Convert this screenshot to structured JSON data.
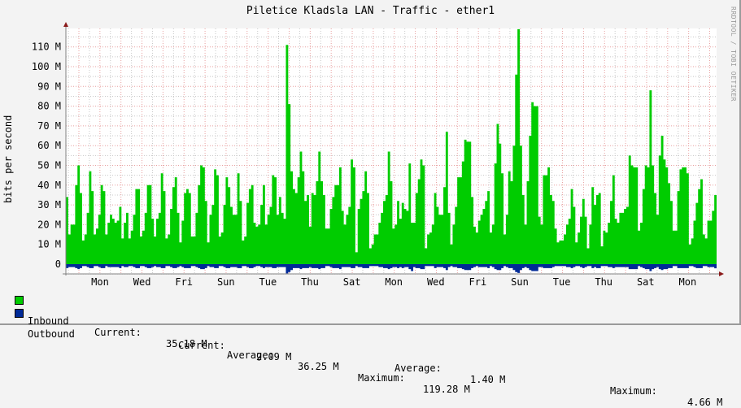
{
  "title": "Piletice Kladsla LAN - Traffic - ether1",
  "credit": "RRDTOOL / TOBI OETIKER",
  "colors": {
    "inbound": "#00cc00",
    "outbound": "#002a97",
    "grid_major": "#e8a0a0",
    "grid_minor": "#c8c8c8",
    "axis": "#808080",
    "arrow": "#8b1a1a"
  },
  "legend": {
    "inbound": {
      "label": "Inbound",
      "current_label": "Current:",
      "current": "35.18 M",
      "average_label": "Average:",
      "average": "36.25 M",
      "maximum_label": "Maximum:",
      "maximum": "119.28 M"
    },
    "outbound": {
      "label": "Outbound",
      "current_label": "Current:",
      "current": "2.09 M",
      "average_label": "Average:",
      "average": "1.40 M",
      "maximum_label": "Maximum:",
      "maximum": "4.66 M"
    }
  },
  "chart_data": {
    "type": "area",
    "title": "Piletice Kladsla LAN - Traffic - ether1",
    "xlabel": "",
    "ylabel": "bits per second",
    "ylim": [
      0,
      120
    ],
    "y_unit": "M",
    "y_ticks": [
      "0",
      "10 M",
      "20 M",
      "30 M",
      "40 M",
      "50 M",
      "60 M",
      "70 M",
      "80 M",
      "90 M",
      "100 M",
      "110 M"
    ],
    "x_ticks": [
      "Mon",
      "Wed",
      "Fri",
      "Sun",
      "Tue",
      "Thu",
      "Sat",
      "Mon",
      "Wed",
      "Fri",
      "Sun",
      "Tue",
      "Thu",
      "Sat",
      "Mon"
    ],
    "grid": true,
    "legend_position": "bottom",
    "series": [
      {
        "name": "Inbound",
        "color": "#00cc00",
        "values": [
          34,
          15,
          20,
          20,
          40,
          50,
          36,
          12,
          15,
          26,
          47,
          37,
          15,
          18,
          25,
          40,
          37,
          15,
          21,
          25,
          23,
          21,
          22,
          29,
          13,
          21,
          26,
          13,
          17,
          25,
          38,
          38,
          14,
          17,
          26,
          40,
          40,
          23,
          14,
          23,
          26,
          46,
          37,
          13,
          15,
          28,
          39,
          44,
          26,
          11,
          22,
          36,
          38,
          36,
          14,
          14,
          26,
          40,
          50,
          49,
          32,
          11,
          25,
          30,
          48,
          45,
          14,
          16,
          30,
          44,
          39,
          29,
          25,
          25,
          46,
          32,
          12,
          14,
          31,
          38,
          40,
          21,
          19,
          20,
          30,
          40,
          20,
          25,
          29,
          45,
          44,
          25,
          34,
          26,
          23,
          111,
          81,
          47,
          38,
          36,
          44,
          57,
          47,
          32,
          35,
          19,
          36,
          35,
          42,
          57,
          42,
          35,
          18,
          18,
          28,
          34,
          40,
          40,
          49,
          27,
          20,
          25,
          29,
          53,
          49,
          6,
          28,
          33,
          37,
          47,
          36,
          8,
          10,
          15,
          15,
          21,
          26,
          32,
          35,
          57,
          42,
          18,
          20,
          32,
          23,
          31,
          28,
          27,
          51,
          21,
          21,
          36,
          43,
          53,
          50,
          8,
          15,
          16,
          20,
          36,
          29,
          25,
          25,
          39,
          67,
          26,
          10,
          20,
          29,
          44,
          44,
          52,
          63,
          62,
          62,
          34,
          19,
          16,
          22,
          25,
          28,
          32,
          37,
          16,
          20,
          51,
          71,
          61,
          46,
          15,
          25,
          47,
          42,
          60,
          96,
          119,
          60,
          35,
          20,
          42,
          65,
          82,
          80,
          80,
          24,
          20,
          45,
          45,
          49,
          35,
          32,
          18,
          11,
          12,
          12,
          15,
          20,
          23,
          38,
          29,
          11,
          16,
          24,
          33,
          24,
          8,
          20,
          39,
          30,
          35,
          36,
          9,
          17,
          16,
          21,
          32,
          45,
          23,
          21,
          26,
          26,
          28,
          29,
          55,
          50,
          49,
          49,
          17,
          21,
          38,
          50,
          49,
          88,
          50,
          36,
          25,
          55,
          65,
          53,
          49,
          41,
          32,
          17,
          17,
          37,
          48,
          49,
          49,
          46,
          10,
          13,
          22,
          31,
          38,
          43,
          15,
          13,
          22,
          22,
          27,
          35
        ]
      },
      {
        "name": "Outbound",
        "color": "#002a97",
        "values": [
          -2,
          -1.5,
          -1.5,
          -1.5,
          -2,
          -2.5,
          -2,
          -1,
          -1,
          -1.5,
          -2,
          -2,
          -1,
          -1,
          -1.5,
          -2,
          -2,
          -1,
          -1.5,
          -1.5,
          -1.5,
          -1.5,
          -1.5,
          -2,
          -1,
          -1.5,
          -1.5,
          -1,
          -1,
          -1.5,
          -2,
          -2,
          -1,
          -1,
          -1.5,
          -2,
          -2,
          -1.5,
          -1,
          -1.5,
          -1.5,
          -2,
          -2,
          -1,
          -1,
          -1.5,
          -2,
          -2,
          -1.5,
          -1,
          -1.5,
          -2,
          -2,
          -2,
          -1,
          -1,
          -1.5,
          -2,
          -2.5,
          -2.5,
          -2,
          -1,
          -1.5,
          -1.5,
          -2,
          -2,
          -1,
          -1,
          -1.5,
          -2,
          -2,
          -1.5,
          -1.5,
          -1.5,
          -2,
          -2,
          -1,
          -1,
          -1.5,
          -2,
          -2,
          -1.5,
          -1,
          -1,
          -1.5,
          -2,
          -1.5,
          -1.5,
          -1.5,
          -2,
          -2,
          -1.5,
          -1.5,
          -1.5,
          -1.5,
          -4.66,
          -4,
          -3,
          -2,
          -2,
          -2,
          -2.5,
          -2,
          -2,
          -2,
          -1.5,
          -2,
          -2,
          -2,
          -2.5,
          -2,
          -2,
          -1,
          -1,
          -1.5,
          -2,
          -2,
          -2,
          -2.5,
          -1.5,
          -1.5,
          -1.5,
          -1.5,
          -2,
          -2,
          -1,
          -1.5,
          -1.5,
          -2,
          -2,
          -2,
          -1,
          -1,
          -1,
          -1,
          -1.5,
          -1.5,
          -2,
          -2,
          -2.5,
          -2,
          -1.5,
          -1.5,
          -2,
          -1.5,
          -2,
          -1.5,
          -1.5,
          -2.5,
          -3.5,
          -1.5,
          -2,
          -2,
          -2.5,
          -2.5,
          -1,
          -1,
          -1,
          -1,
          -2,
          -1.5,
          -1.5,
          -1.5,
          -2,
          -3,
          -1.5,
          -1,
          -1.5,
          -1.5,
          -2,
          -2,
          -2.5,
          -3,
          -3,
          -3,
          -2,
          -1.5,
          -1,
          -1.5,
          -1.5,
          -1.5,
          -1.5,
          -2,
          -1,
          -1.5,
          -2.5,
          -3,
          -3,
          -2,
          -1,
          -1.5,
          -2,
          -2,
          -3,
          -4,
          -4.5,
          -3,
          -2,
          -1.5,
          -2,
          -3,
          -3.5,
          -3.5,
          -3.5,
          -1.5,
          -1.5,
          -2,
          -2,
          -2,
          -2,
          -1.5,
          -1,
          -1,
          -1,
          -1,
          -1,
          -1.5,
          -1.5,
          -2,
          -1.5,
          -1,
          -1,
          -1.5,
          -2,
          -1.5,
          -1,
          -1,
          -2,
          -1.5,
          -2,
          -2,
          -1,
          -1,
          -1,
          -1.5,
          -1.5,
          -2,
          -1.5,
          -1.5,
          -1.5,
          -1.5,
          -1.5,
          -1.5,
          -2.5,
          -2.5,
          -2.5,
          -2.5,
          -1,
          -1.5,
          -2,
          -2.5,
          -2.5,
          -3.5,
          -2.5,
          -2,
          -1.5,
          -2.5,
          -3,
          -2.5,
          -2.5,
          -2,
          -2,
          -1,
          -1,
          -2,
          -2,
          -2,
          -2,
          -2,
          -1,
          -1,
          -1.5,
          -2,
          -2,
          -2,
          -1,
          -1,
          -1.5,
          -1.5,
          -1.5,
          -2.09
        ]
      }
    ]
  }
}
